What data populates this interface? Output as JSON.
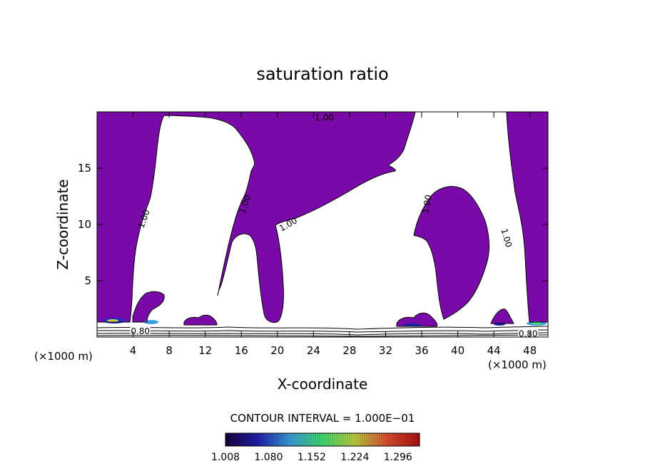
{
  "chart_data": {
    "type": "heatmap",
    "title": "saturation ratio",
    "xlabel": "X-coordinate",
    "ylabel": "Z-coordinate",
    "x_unit": "(×1000 m)",
    "x_unit_right": "(×1000 m)",
    "xlim": [
      0,
      50
    ],
    "ylim": [
      0,
      20
    ],
    "x_ticks": [
      4,
      8,
      12,
      16,
      20,
      24,
      28,
      32,
      36,
      40,
      44,
      48
    ],
    "y_ticks": [
      5,
      10,
      15
    ],
    "contour_interval_text": "CONTOUR INTERVAL = 1.000E−01",
    "colorbar": {
      "min": 1.008,
      "max": 1.332,
      "tick_labels": [
        "1.008",
        "1.080",
        "1.152",
        "1.224",
        "1.296"
      ],
      "colors": [
        "#1a0040",
        "#2020b0",
        "#3aa0e0",
        "#40e070",
        "#c0d040",
        "#e05030",
        "#b01010"
      ]
    },
    "fill_color": "#7a0aa8",
    "contour_labels": [
      {
        "text": "1.00",
        "x": 25.2,
        "y": 19.5,
        "angle": 0
      },
      {
        "text": "1.00",
        "x": 5.2,
        "y": 10.5,
        "angle": -70
      },
      {
        "text": "1.00",
        "x": 16.4,
        "y": 11.8,
        "angle": -70
      },
      {
        "text": "1.00",
        "x": 21.2,
        "y": 10.0,
        "angle": -30
      },
      {
        "text": "1.00",
        "x": 36.6,
        "y": 11.8,
        "angle": -80
      },
      {
        "text": "1.00",
        "x": 45.4,
        "y": 8.8,
        "angle": 75
      },
      {
        "text": "0.80",
        "x": 4.8,
        "y": 0.5,
        "angle": 0
      },
      {
        "text": "0.80",
        "x": 47.8,
        "y": 0.3,
        "angle": 0
      }
    ]
  }
}
